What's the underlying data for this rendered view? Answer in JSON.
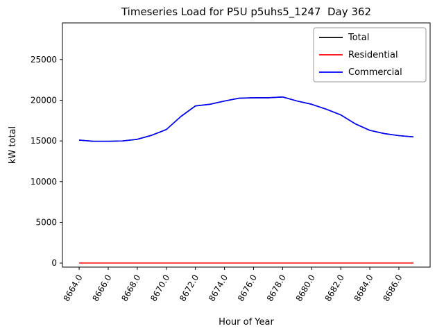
{
  "chart_data": {
    "type": "line",
    "title": "Timeseries Load for P5U p5uhs5_1247  Day 362",
    "xlabel": "Hour of Year",
    "ylabel": "kW total",
    "xlim": [
      8662.85,
      8688.15
    ],
    "ylim": [
      -500,
      29500
    ],
    "xticks": [
      8664,
      8666,
      8668,
      8670,
      8672,
      8674,
      8676,
      8678,
      8680,
      8682,
      8684,
      8686
    ],
    "xtick_labels": [
      "8664.0",
      "8666.0",
      "8668.0",
      "8670.0",
      "8672.0",
      "8674.0",
      "8676.0",
      "8678.0",
      "8680.0",
      "8682.0",
      "8684.0",
      "8686.0"
    ],
    "yticks": [
      0,
      5000,
      10000,
      15000,
      20000,
      25000
    ],
    "ytick_labels": [
      "0",
      "5000",
      "10000",
      "15000",
      "20000",
      "25000"
    ],
    "x": [
      8664,
      8665,
      8666,
      8667,
      8668,
      8669,
      8670,
      8671,
      8672,
      8673,
      8674,
      8675,
      8676,
      8677,
      8678,
      8679,
      8680,
      8681,
      8682,
      8683,
      8684,
      8685,
      8686,
      8687
    ],
    "series": [
      {
        "name": "Total",
        "color": "#000000",
        "values": [
          15100,
          14950,
          14950,
          15000,
          15200,
          15700,
          16400,
          18000,
          19300,
          19500,
          19900,
          20250,
          20300,
          20300,
          20400,
          19900,
          19500,
          18900,
          18200,
          17100,
          16300,
          15900,
          15650,
          15500
        ]
      },
      {
        "name": "Residential",
        "color": "#ff0000",
        "values": [
          0,
          0,
          0,
          0,
          0,
          0,
          0,
          0,
          0,
          0,
          0,
          0,
          0,
          0,
          0,
          0,
          0,
          0,
          0,
          0,
          0,
          0,
          0,
          0
        ]
      },
      {
        "name": "Commercial",
        "color": "#0000ff",
        "values": [
          15100,
          14950,
          14950,
          15000,
          15200,
          15700,
          16400,
          18000,
          19300,
          19500,
          19900,
          20250,
          20300,
          20300,
          20400,
          19900,
          19500,
          18900,
          18200,
          17100,
          16300,
          15900,
          15650,
          15500
        ]
      }
    ],
    "legend_position": "upper right",
    "grid": false
  }
}
